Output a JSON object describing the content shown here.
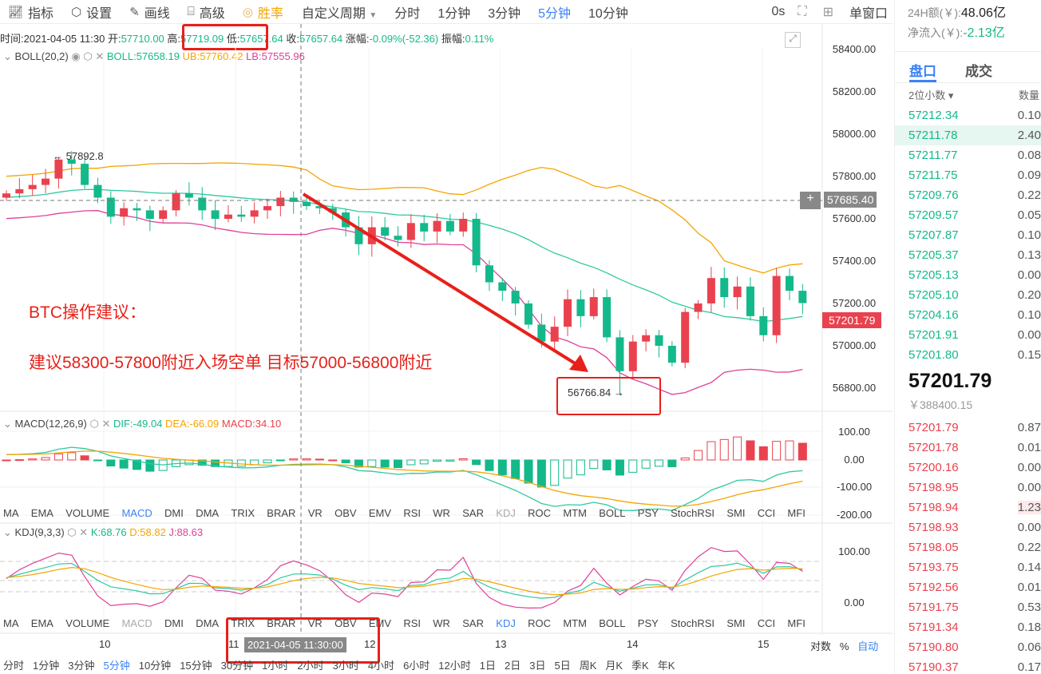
{
  "toolbar": {
    "items": [
      {
        "icon": "line-chart-icon",
        "label": "指标"
      },
      {
        "icon": "hexagon-gear-icon",
        "label": "设置"
      },
      {
        "icon": "pencil-icon",
        "label": "画线"
      },
      {
        "icon": "briefcase-icon",
        "label": "高级"
      },
      {
        "icon": "gauge-icon",
        "label": "胜率"
      }
    ],
    "custom_period": "自定义周期",
    "periods": [
      "分时",
      "1分钟",
      "3分钟",
      "5分钟",
      "10分钟"
    ],
    "active_period": "5分钟",
    "countdown": "0s",
    "window_mode": "单窗口"
  },
  "info": {
    "time_label": "时间:",
    "time": "2021-04-05 11:30",
    "open_label": "开:",
    "open": "57710.00",
    "high_label": "高:",
    "high": "57719.09",
    "low_label": "低:",
    "low": "57657.64",
    "close_label": "收:",
    "close": "57657.64",
    "change_label": "涨幅:",
    "change": "-0.09%(-52.36)",
    "amp_label": "振幅:",
    "amp": "0.11%"
  },
  "boll": {
    "name": "BOLL(20,2)",
    "mid": "BOLL:57658.19",
    "ub": "UB:57760.42",
    "lb": "LB:57555.96"
  },
  "macd": {
    "name": "MACD(12,26,9)",
    "dif": "DIF:-49.04",
    "dea": "DEA:-66.09",
    "macd": "MACD:34.10"
  },
  "kdj": {
    "name": "KDJ(9,3,3)",
    "k": "K:68.76",
    "d": "D:58.82",
    "j": "J:88.63"
  },
  "indicator_tabs": [
    "MA",
    "EMA",
    "VOLUME",
    "MACD",
    "DMI",
    "DMA",
    "TRIX",
    "BRAR",
    "VR",
    "OBV",
    "EMV",
    "RSI",
    "WR",
    "SAR",
    "KDJ",
    "ROC",
    "MTM",
    "BOLL",
    "PSY",
    "StochRSI",
    "SMI",
    "CCI",
    "MFI"
  ],
  "price_axis": [
    "58400.00",
    "58200.00",
    "58000.00",
    "57800.00",
    "57600.00",
    "57400.00",
    "57200.00",
    "57000.00",
    "56800.00"
  ],
  "macd_axis": [
    "100.00",
    "0.00",
    "-100.00",
    "-200.00"
  ],
  "kdj_axis": [
    "100.00",
    "0.00"
  ],
  "crosshair_price": "57685.40",
  "last_price_tag": "57201.79",
  "high_marker": "57892.8",
  "low_marker": "56766.84",
  "annotation": {
    "title": "BTC操作建议：",
    "body": "建议58300-57800附近入场空单 目标57000-56800附近"
  },
  "x_axis": {
    "ticks": [
      "10",
      "11",
      "12",
      "13",
      "14",
      "15"
    ],
    "crosshair_time": "2021-04-05 11:30:00",
    "log": "对数",
    "pct": "%",
    "auto": "自动"
  },
  "bottom_periods": [
    "分时",
    "1分钟",
    "3分钟",
    "5分钟",
    "10分钟",
    "15分钟",
    "30分钟",
    "1小时",
    "2小时",
    "3小时",
    "4小时",
    "6小时",
    "12小时",
    "1日",
    "2日",
    "3日",
    "5日",
    "周K",
    "月K",
    "季K",
    "年K"
  ],
  "candles": {
    "closes": [
      57720,
      57740,
      57760,
      57790,
      57880,
      57860,
      57760,
      57700,
      57610,
      57650,
      57640,
      57600,
      57640,
      57720,
      57700,
      57640,
      57600,
      57620,
      57610,
      57640,
      57660,
      57700,
      57680,
      57660,
      57650,
      57630,
      57560,
      57480,
      57560,
      57520,
      57500,
      57580,
      57540,
      57590,
      57540,
      57600,
      57380,
      57300,
      57260,
      57200,
      57100,
      57020,
      57090,
      57220,
      57140,
      57230,
      57040,
      56880,
      57020,
      57050,
      57000,
      56920,
      57160,
      57200,
      57320,
      57230,
      57280,
      57140,
      57050,
      57330,
      57260,
      57201.79
    ],
    "up_color": "#e9424e",
    "down_color": "#13b98a"
  },
  "right_panel": {
    "amount_label": "24H额(￥):",
    "amount": "48.06亿",
    "inflow_label": "净流入(￥):",
    "inflow": "-2.13亿",
    "tabs": [
      "盘口",
      "成交"
    ],
    "decimals": "2位小数",
    "qty_header": "数量",
    "asks": [
      [
        "57212.34",
        "0.10"
      ],
      [
        "57211.78",
        "2.40"
      ],
      [
        "57211.77",
        "0.08"
      ],
      [
        "57211.75",
        "0.09"
      ],
      [
        "57209.76",
        "0.22"
      ],
      [
        "57209.57",
        "0.05"
      ],
      [
        "57207.87",
        "0.10"
      ],
      [
        "57205.37",
        "0.13"
      ],
      [
        "57205.13",
        "0.00"
      ],
      [
        "57205.10",
        "0.20"
      ],
      [
        "57204.16",
        "0.10"
      ],
      [
        "57201.91",
        "0.00"
      ],
      [
        "57201.80",
        "0.15"
      ]
    ],
    "last": "57201.79",
    "last_cny": "￥388400.15",
    "bids": [
      [
        "57201.79",
        "0.87"
      ],
      [
        "57201.78",
        "0.01"
      ],
      [
        "57200.16",
        "0.00"
      ],
      [
        "57198.95",
        "0.00"
      ],
      [
        "57198.94",
        "1.23"
      ],
      [
        "57198.93",
        "0.00"
      ],
      [
        "57198.05",
        "0.22"
      ],
      [
        "57193.75",
        "0.14"
      ],
      [
        "57192.56",
        "0.01"
      ],
      [
        "57191.75",
        "0.53"
      ],
      [
        "57191.34",
        "0.18"
      ],
      [
        "57190.80",
        "0.06"
      ],
      [
        "57190.37",
        "0.17"
      ]
    ]
  }
}
